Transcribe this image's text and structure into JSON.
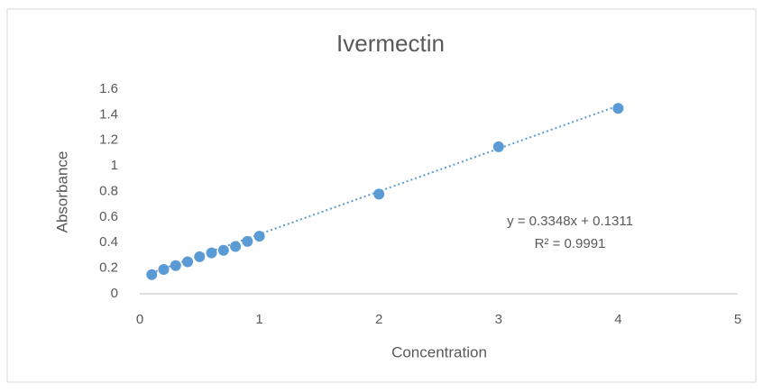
{
  "chart_data": {
    "type": "scatter",
    "title": "Ivermectin",
    "x_label": "Concentration",
    "y_label": "Absorbance",
    "series": [
      {
        "name": "Ivermectin",
        "color": "#5b9bd5",
        "x": [
          0.1,
          0.2,
          0.3,
          0.4,
          0.5,
          0.6,
          0.7,
          0.8,
          0.9,
          1,
          2,
          3,
          4
        ],
        "values": [
          0.15,
          0.19,
          0.22,
          0.25,
          0.29,
          0.32,
          0.34,
          0.37,
          0.41,
          0.45,
          0.78,
          1.15,
          1.45
        ]
      }
    ],
    "trendline": {
      "slope": 0.3348,
      "intercept": 0.1311,
      "equation": "y = 0.3348x + 0.1311",
      "r_squared": 0.9991,
      "r_squared_label": "R² = 0.9991"
    },
    "xlim": [
      0,
      5
    ],
    "xticks": [
      0,
      1,
      2,
      3,
      4,
      5
    ],
    "ylim": [
      0,
      1.6
    ],
    "yticks": [
      0,
      0.2,
      0.4,
      0.6,
      0.8,
      1,
      1.2,
      1.4,
      1.6
    ],
    "grid": false
  }
}
